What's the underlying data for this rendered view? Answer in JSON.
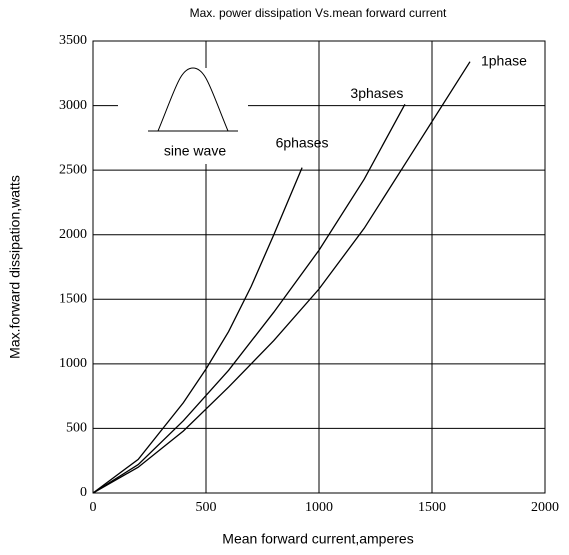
{
  "chart_data": {
    "type": "line",
    "title": "Max. power dissipation  Vs.mean forward current",
    "x_label": "Mean forward  current,amperes",
    "y_label": "Max.forward  dissipation,watts",
    "annotation": "sine wave",
    "xlim": [
      0,
      2000
    ],
    "xticks": [
      0,
      500,
      1000,
      1500,
      2000
    ],
    "ylim": [
      0,
      3500
    ],
    "yticks": [
      0,
      500,
      1000,
      1500,
      2000,
      2500,
      3000,
      3500
    ],
    "grid": true,
    "series": [
      {
        "name": "1phase",
        "color": "#000000",
        "x": [
          0,
          200,
          400,
          600,
          800,
          1000,
          1200,
          1400,
          1668
        ],
        "values": [
          0,
          200,
          480,
          820,
          1180,
          1580,
          2050,
          2600,
          3340
        ]
      },
      {
        "name": "3phases",
        "color": "#000000",
        "x": [
          0,
          200,
          400,
          600,
          800,
          1000,
          1200,
          1380
        ],
        "values": [
          0,
          220,
          560,
          950,
          1400,
          1880,
          2430,
          3010
        ]
      },
      {
        "name": "6phases",
        "color": "#000000",
        "x": [
          0,
          200,
          400,
          500,
          600,
          700,
          800,
          925
        ],
        "values": [
          0,
          260,
          700,
          960,
          1250,
          1600,
          2000,
          2520
        ]
      }
    ]
  }
}
